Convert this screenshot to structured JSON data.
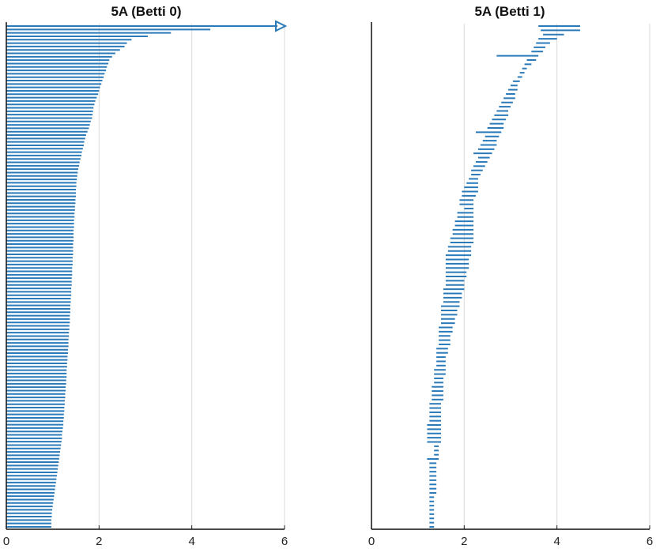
{
  "chart_data": [
    {
      "type": "barcode",
      "title": "5A (Betti 0)",
      "xlim": [
        0,
        6
      ],
      "xticks": [
        "0",
        "2",
        "4",
        "6"
      ],
      "grid": "vertical",
      "color": "#2a7ab9",
      "infinite_bar": {
        "start": 0,
        "arrow": true
      },
      "bars_end": [
        4.4,
        3.55,
        3.05,
        2.7,
        2.6,
        2.55,
        2.45,
        2.35,
        2.28,
        2.22,
        2.2,
        2.17,
        2.15,
        2.12,
        2.1,
        2.07,
        2.05,
        2.02,
        2.0,
        1.98,
        1.95,
        1.92,
        1.9,
        1.88,
        1.87,
        1.86,
        1.85,
        1.82,
        1.8,
        1.78,
        1.75,
        1.72,
        1.7,
        1.68,
        1.67,
        1.65,
        1.63,
        1.62,
        1.6,
        1.58,
        1.57,
        1.55,
        1.54,
        1.53,
        1.52,
        1.51,
        1.51,
        1.5,
        1.5,
        1.5,
        1.49,
        1.49,
        1.48,
        1.48,
        1.47,
        1.47,
        1.46,
        1.46,
        1.46,
        1.45,
        1.45,
        1.45,
        1.45,
        1.44,
        1.44,
        1.44,
        1.44,
        1.43,
        1.43,
        1.43,
        1.42,
        1.42,
        1.42,
        1.41,
        1.41,
        1.41,
        1.4,
        1.4,
        1.4,
        1.39,
        1.39,
        1.38,
        1.38,
        1.38,
        1.37,
        1.37,
        1.37,
        1.36,
        1.36,
        1.35,
        1.35,
        1.34,
        1.34,
        1.34,
        1.33,
        1.33,
        1.32,
        1.32,
        1.31,
        1.31,
        1.3,
        1.3,
        1.3,
        1.29,
        1.29,
        1.28,
        1.28,
        1.27,
        1.27,
        1.26,
        1.26,
        1.25,
        1.25,
        1.24,
        1.24,
        1.23,
        1.23,
        1.22,
        1.21,
        1.2,
        1.2,
        1.19,
        1.18,
        1.17,
        1.16,
        1.15,
        1.14,
        1.13,
        1.12,
        1.11,
        1.1,
        1.09,
        1.08,
        1.07,
        1.06,
        1.05,
        1.04,
        1.03,
        1.02,
        1.01,
        1.0,
        0.99,
        0.98,
        0.98,
        0.97,
        0.97,
        0.97
      ]
    },
    {
      "type": "barcode",
      "title": "5A (Betti 1)",
      "xlim": [
        0,
        6
      ],
      "xticks": [
        "0",
        "2",
        "4",
        "6"
      ],
      "grid": "vertical",
      "color": "#2a7ab9",
      "bars": [
        [
          3.6,
          4.5
        ],
        [
          3.65,
          4.5
        ],
        [
          3.7,
          4.15
        ],
        [
          3.6,
          4.0
        ],
        [
          3.55,
          3.85
        ],
        [
          3.5,
          3.75
        ],
        [
          3.45,
          3.7
        ],
        [
          2.7,
          3.6
        ],
        [
          3.35,
          3.55
        ],
        [
          3.3,
          3.45
        ],
        [
          3.25,
          3.35
        ],
        [
          3.2,
          3.3
        ],
        [
          3.15,
          3.25
        ],
        [
          3.05,
          3.2
        ],
        [
          3.0,
          3.15
        ],
        [
          2.95,
          3.15
        ],
        [
          2.9,
          3.1
        ],
        [
          2.85,
          3.1
        ],
        [
          2.8,
          3.05
        ],
        [
          2.75,
          3.0
        ],
        [
          2.7,
          2.95
        ],
        [
          2.65,
          2.95
        ],
        [
          2.6,
          2.9
        ],
        [
          2.55,
          2.85
        ],
        [
          2.5,
          2.85
        ],
        [
          2.25,
          2.8
        ],
        [
          2.45,
          2.75
        ],
        [
          2.4,
          2.7
        ],
        [
          2.35,
          2.7
        ],
        [
          2.3,
          2.65
        ],
        [
          2.2,
          2.6
        ],
        [
          2.3,
          2.55
        ],
        [
          2.25,
          2.5
        ],
        [
          2.2,
          2.45
        ],
        [
          2.15,
          2.4
        ],
        [
          2.15,
          2.35
        ],
        [
          2.1,
          2.3
        ],
        [
          2.05,
          2.3
        ],
        [
          2.0,
          2.3
        ],
        [
          1.95,
          2.3
        ],
        [
          1.95,
          2.25
        ],
        [
          1.9,
          2.2
        ],
        [
          1.9,
          2.2
        ],
        [
          2.0,
          2.2
        ],
        [
          1.85,
          2.2
        ],
        [
          1.85,
          2.2
        ],
        [
          1.8,
          2.2
        ],
        [
          1.8,
          2.2
        ],
        [
          1.75,
          2.2
        ],
        [
          1.75,
          2.2
        ],
        [
          1.7,
          2.2
        ],
        [
          1.7,
          2.2
        ],
        [
          1.65,
          2.15
        ],
        [
          1.65,
          2.15
        ],
        [
          1.6,
          2.15
        ],
        [
          1.6,
          2.1
        ],
        [
          1.6,
          2.1
        ],
        [
          1.6,
          2.1
        ],
        [
          1.6,
          2.05
        ],
        [
          1.6,
          2.05
        ],
        [
          1.6,
          2.0
        ],
        [
          1.6,
          2.0
        ],
        [
          1.55,
          2.0
        ],
        [
          1.55,
          1.95
        ],
        [
          1.55,
          1.95
        ],
        [
          1.55,
          1.9
        ],
        [
          1.5,
          1.9
        ],
        [
          1.5,
          1.85
        ],
        [
          1.5,
          1.85
        ],
        [
          1.5,
          1.8
        ],
        [
          1.5,
          1.8
        ],
        [
          1.45,
          1.75
        ],
        [
          1.45,
          1.75
        ],
        [
          1.45,
          1.7
        ],
        [
          1.45,
          1.7
        ],
        [
          1.45,
          1.7
        ],
        [
          1.4,
          1.65
        ],
        [
          1.4,
          1.65
        ],
        [
          1.4,
          1.6
        ],
        [
          1.4,
          1.6
        ],
        [
          1.4,
          1.6
        ],
        [
          1.35,
          1.6
        ],
        [
          1.35,
          1.6
        ],
        [
          1.35,
          1.55
        ],
        [
          1.35,
          1.55
        ],
        [
          1.3,
          1.55
        ],
        [
          1.3,
          1.55
        ],
        [
          1.3,
          1.55
        ],
        [
          1.3,
          1.55
        ],
        [
          1.25,
          1.5
        ],
        [
          1.25,
          1.5
        ],
        [
          1.25,
          1.5
        ],
        [
          1.25,
          1.5
        ],
        [
          1.25,
          1.5
        ],
        [
          1.2,
          1.5
        ],
        [
          1.2,
          1.5
        ],
        [
          1.2,
          1.5
        ],
        [
          1.2,
          1.5
        ],
        [
          1.2,
          1.5
        ],
        [
          1.35,
          1.45
        ],
        [
          1.35,
          1.45
        ],
        [
          1.35,
          1.45
        ],
        [
          1.2,
          1.45
        ],
        [
          1.25,
          1.4
        ],
        [
          1.25,
          1.4
        ],
        [
          1.25,
          1.4
        ],
        [
          1.25,
          1.4
        ],
        [
          1.25,
          1.4
        ],
        [
          1.25,
          1.4
        ],
        [
          1.25,
          1.4
        ],
        [
          1.25,
          1.4
        ],
        [
          1.25,
          1.35
        ],
        [
          1.25,
          1.35
        ],
        [
          1.25,
          1.35
        ],
        [
          1.25,
          1.35
        ],
        [
          1.25,
          1.35
        ],
        [
          1.25,
          1.35
        ],
        [
          1.25,
          1.35
        ],
        [
          1.25,
          1.35
        ]
      ]
    }
  ]
}
